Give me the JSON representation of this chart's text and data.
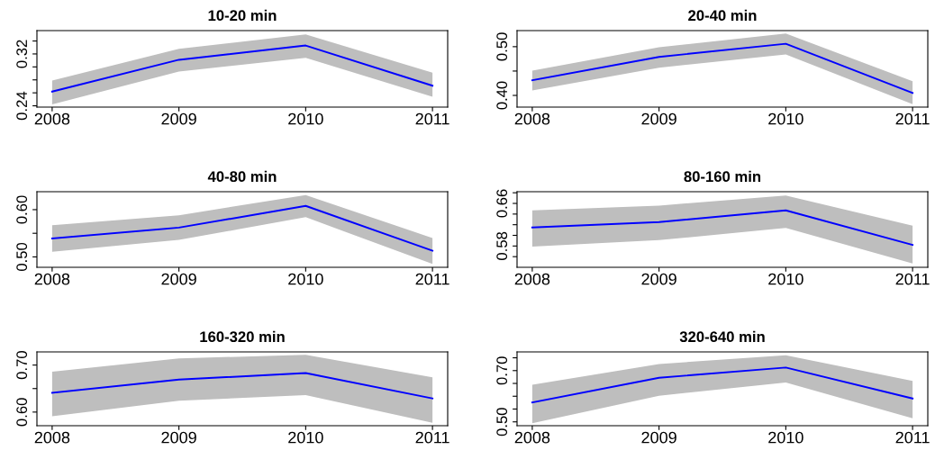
{
  "chart_data": [
    {
      "type": "line",
      "title": "10-20 min",
      "x": [
        2008,
        2009,
        2010,
        2011
      ],
      "xlim": [
        2007.88,
        2011.12
      ],
      "xticks": [
        2008,
        2009,
        2010,
        2011
      ],
      "ylim": [
        0.238,
        0.356
      ],
      "yticks": [
        0.24,
        {
          "value": 0.26,
          "label": null
        },
        {
          "value": 0.28,
          "label": null
        },
        {
          "value": 0.3,
          "label": null
        },
        0.32,
        {
          "value": 0.34,
          "label": null
        }
      ],
      "grid": false,
      "series": [
        {
          "color": "#0000ff",
          "values": [
            0.262,
            0.311,
            0.333,
            0.271
          ],
          "lower": [
            0.242,
            0.293,
            0.314,
            0.254
          ],
          "upper": [
            0.279,
            0.328,
            0.35,
            0.291
          ]
        }
      ]
    },
    {
      "type": "line",
      "title": "20-40 min",
      "x": [
        2008,
        2009,
        2010,
        2011
      ],
      "xlim": [
        2007.88,
        2011.12
      ],
      "xticks": [
        2008,
        2009,
        2010,
        2011
      ],
      "ylim": [
        0.376,
        0.533
      ],
      "yticks": [
        {
          "value": 0.4,
          "label": "0.40"
        },
        {
          "value": 0.45,
          "label": null
        },
        {
          "value": 0.5,
          "label": "0.50"
        }
      ],
      "grid": false,
      "series": [
        {
          "color": "#0000ff",
          "values": [
            0.431,
            0.479,
            0.506,
            0.405
          ],
          "lower": [
            0.41,
            0.457,
            0.484,
            0.382
          ],
          "upper": [
            0.451,
            0.499,
            0.527,
            0.429
          ]
        }
      ]
    },
    {
      "type": "line",
      "title": "40-80 min",
      "x": [
        2008,
        2009,
        2010,
        2011
      ],
      "xlim": [
        2007.88,
        2011.12
      ],
      "xticks": [
        2008,
        2009,
        2010,
        2011
      ],
      "ylim": [
        0.478,
        0.638
      ],
      "yticks": [
        {
          "value": 0.5,
          "label": "0.50"
        },
        {
          "value": 0.55,
          "label": null
        },
        {
          "value": 0.6,
          "label": "0.60"
        }
      ],
      "grid": false,
      "series": [
        {
          "color": "#0000ff",
          "values": [
            0.539,
            0.562,
            0.608,
            0.513
          ],
          "lower": [
            0.511,
            0.536,
            0.584,
            0.485
          ],
          "upper": [
            0.567,
            0.588,
            0.631,
            0.54
          ]
        }
      ]
    },
    {
      "type": "line",
      "title": "80-160 min",
      "x": [
        2008,
        2009,
        2010,
        2011
      ],
      "xlim": [
        2007.88,
        2011.12
      ],
      "xticks": [
        2008,
        2009,
        2010,
        2011
      ],
      "ylim": [
        0.54,
        0.682
      ],
      "yticks": [
        {
          "value": 0.56,
          "label": null
        },
        0.58,
        {
          "value": 0.6,
          "label": null
        },
        {
          "value": 0.62,
          "label": null
        },
        {
          "value": 0.64,
          "label": null
        },
        0.66,
        {
          "value": 0.68,
          "label": null
        }
      ],
      "grid": false,
      "series": [
        {
          "color": "#0000ff",
          "values": [
            0.615,
            0.625,
            0.647,
            0.582
          ],
          "lower": [
            0.579,
            0.591,
            0.614,
            0.547
          ],
          "upper": [
            0.647,
            0.656,
            0.675,
            0.618
          ]
        }
      ]
    },
    {
      "type": "line",
      "title": "160-320 min",
      "x": [
        2008,
        2009,
        2010,
        2011
      ],
      "xlim": [
        2007.88,
        2011.12
      ],
      "xticks": [
        2008,
        2009,
        2010,
        2011
      ],
      "ylim": [
        0.571,
        0.728
      ],
      "yticks": [
        {
          "value": 0.6,
          "label": "0.60"
        },
        {
          "value": 0.65,
          "label": null
        },
        {
          "value": 0.7,
          "label": "0.70"
        }
      ],
      "grid": false,
      "series": [
        {
          "color": "#0000ff",
          "values": [
            0.641,
            0.669,
            0.683,
            0.629
          ],
          "lower": [
            0.591,
            0.624,
            0.636,
            0.577
          ],
          "upper": [
            0.686,
            0.714,
            0.722,
            0.674
          ]
        }
      ]
    },
    {
      "type": "line",
      "title": "320-640 min",
      "x": [
        2008,
        2009,
        2010,
        2011
      ],
      "xlim": [
        2007.88,
        2011.12
      ],
      "xticks": [
        2008,
        2009,
        2010,
        2011
      ],
      "ylim": [
        0.485,
        0.773
      ],
      "yticks": [
        {
          "value": 0.5,
          "label": "0.50"
        },
        {
          "value": 0.55,
          "label": null
        },
        {
          "value": 0.6,
          "label": null
        },
        {
          "value": 0.65,
          "label": null
        },
        {
          "value": 0.7,
          "label": "0.70"
        },
        {
          "value": 0.75,
          "label": null
        }
      ],
      "grid": false,
      "series": [
        {
          "color": "#0000ff",
          "values": [
            0.576,
            0.672,
            0.712,
            0.591
          ],
          "lower": [
            0.495,
            0.602,
            0.654,
            0.514
          ],
          "upper": [
            0.645,
            0.726,
            0.76,
            0.66
          ]
        }
      ]
    }
  ]
}
